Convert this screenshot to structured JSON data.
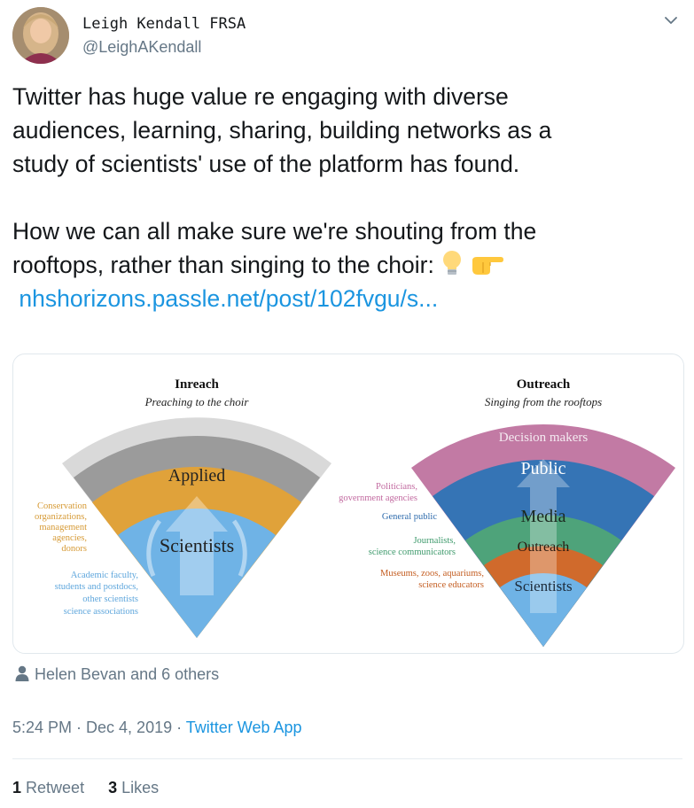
{
  "author": {
    "display_name": "Leigh Kendall FRSA",
    "handle": "@LeighAKendall"
  },
  "tweet": {
    "line1": "Twitter has huge value re engaging with diverse",
    "line2": "audiences, learning, sharing, building networks as a",
    "line3": "study of scientists' use of the platform has found.",
    "line4": "How we can all make sure we're shouting from the",
    "line5": "rooftops, rather than singing to the choir:",
    "emojis": [
      "lightbulb-icon",
      "pointing-right-hand-icon"
    ],
    "link_text": "nhshorizons.passle.net/post/102fvgu/s..."
  },
  "image": {
    "inreach": {
      "title": "Inreach",
      "subtitle": "Preaching to the choir",
      "ring_applied": "Applied",
      "core": "Scientists",
      "left_label_1": [
        "Conservation",
        "organizations,",
        "management",
        "agencies,",
        "donors"
      ],
      "left_label_2": [
        "Academic faculty,",
        "students and postdocs,",
        "other scientists",
        "science associations"
      ]
    },
    "outreach": {
      "title": "Outreach",
      "subtitle": "Singing from the rooftops",
      "ring_decision": "Decision makers",
      "ring_public": "Public",
      "ring_media": "Media",
      "ring_outreach": "Outreach",
      "core": "Scientists",
      "label_politicians": [
        "Politicians,",
        "government agencies"
      ],
      "label_public": "General public",
      "label_journalists": [
        "Journalists,",
        "science communicators"
      ],
      "label_museums": [
        "Museums, zoos, aquariums,",
        "science educators"
      ]
    },
    "colors": {
      "outer_gray": "#d9d9d9",
      "mid_gray": "#9b9b9b",
      "applied": "#e0a23a",
      "scientists": "#6fb3e6",
      "decision": "#c27aa4",
      "public": "#3574b5",
      "media": "#4ea37a",
      "outreach": "#d06a2c"
    }
  },
  "likers": "Helen Bevan and 6 others",
  "meta": {
    "time": "5:24 PM · Dec 4, 2019 · ",
    "source": "Twitter Web App"
  },
  "stats": {
    "retweets_count": "1",
    "retweets_label": "Retweet",
    "likes_count": "3",
    "likes_label": "Likes"
  }
}
